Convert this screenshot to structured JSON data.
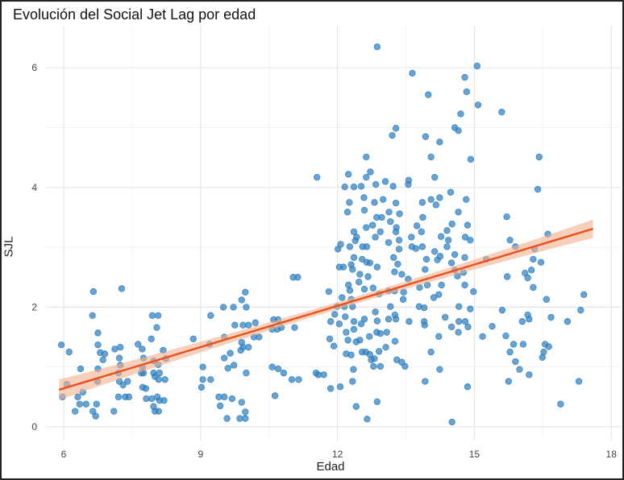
{
  "chart_data": {
    "type": "scatter",
    "title": "Evolución del Social Jet Lag por edad",
    "xlabel": "Edad",
    "ylabel": "SJL",
    "xlim": [
      5.6,
      18.1
    ],
    "ylim": [
      -0.2,
      6.6
    ],
    "xticks": [
      6,
      9,
      12,
      15,
      18
    ],
    "yticks": [
      0,
      2,
      4,
      6
    ],
    "grid": true,
    "colors": {
      "points": "#2e7fbf",
      "fit_line": "#e8511c",
      "confidence_band": "#f2b08f"
    },
    "fit": {
      "type": "linear",
      "x": [
        5.9,
        17.6
      ],
      "y": [
        0.62,
        3.31
      ],
      "ci_halfwidth": [
        0.17,
        0.06,
        0.2
      ]
    },
    "points": [
      [
        5.95,
        1.37
      ],
      [
        6.12,
        1.25
      ],
      [
        5.97,
        0.5
      ],
      [
        6.07,
        0.71
      ],
      [
        6.37,
        0.97
      ],
      [
        6.25,
        0.26
      ],
      [
        6.35,
        0.38
      ],
      [
        6.49,
        0.38
      ],
      [
        6.31,
        0.5
      ],
      [
        6.42,
        0.58
      ],
      [
        6.65,
        2.26
      ],
      [
        6.63,
        1.86
      ],
      [
        6.75,
        1.57
      ],
      [
        6.75,
        1.37
      ],
      [
        6.8,
        1.24
      ],
      [
        6.86,
        1.12
      ],
      [
        6.9,
        1.22
      ],
      [
        6.75,
        0.97
      ],
      [
        6.74,
        0.76
      ],
      [
        6.64,
        0.26
      ],
      [
        6.7,
        0.18
      ],
      [
        6.72,
        0.38
      ],
      [
        7.27,
        2.31
      ],
      [
        7.24,
        1.33
      ],
      [
        7.22,
        1.15
      ],
      [
        7.24,
        1.03
      ],
      [
        7.2,
        0.9
      ],
      [
        7.22,
        0.76
      ],
      [
        7.3,
        0.7
      ],
      [
        7.4,
        0.76
      ],
      [
        7.2,
        0.5
      ],
      [
        7.35,
        0.5
      ],
      [
        7.43,
        0.5
      ],
      [
        7.1,
        0.26
      ],
      [
        7.12,
        1.3
      ],
      [
        7.63,
        1.38
      ],
      [
        7.72,
        1.3
      ],
      [
        7.75,
        1.15
      ],
      [
        7.73,
        0.99
      ],
      [
        7.75,
        0.9
      ],
      [
        7.7,
        0.9
      ],
      [
        7.73,
        0.66
      ],
      [
        7.8,
        0.64
      ],
      [
        7.81,
        0.47
      ],
      [
        7.93,
        0.47
      ],
      [
        7.92,
        1.47
      ],
      [
        7.94,
        1.86
      ],
      [
        8.07,
        1.86
      ],
      [
        8.04,
        1.66
      ],
      [
        7.97,
        0.9
      ],
      [
        8.0,
        0.84
      ],
      [
        8.1,
        0.9
      ],
      [
        8.08,
        0.79
      ],
      [
        8.22,
        0.79
      ],
      [
        8.05,
        0.5
      ],
      [
        8.1,
        0.44
      ],
      [
        8.2,
        0.44
      ],
      [
        7.97,
        0.34
      ],
      [
        8.08,
        0.26
      ],
      [
        8.0,
        0.26
      ],
      [
        8.18,
        1.28
      ],
      [
        8.24,
        1.14
      ],
      [
        8.07,
        1.04
      ],
      [
        7.97,
        1.1
      ],
      [
        8.84,
        1.47
      ],
      [
        9.22,
        1.86
      ],
      [
        9.02,
        0.66
      ],
      [
        9.05,
        1.0
      ],
      [
        9.05,
        0.79
      ],
      [
        9.22,
        0.79
      ],
      [
        9.2,
        1.38
      ],
      [
        9.5,
        2.0
      ],
      [
        9.72,
        2.0
      ],
      [
        9.9,
        2.12
      ],
      [
        9.98,
        2.25
      ],
      [
        10.0,
        2.0
      ],
      [
        9.75,
        1.7
      ],
      [
        9.93,
        1.7
      ],
      [
        10.05,
        1.7
      ],
      [
        10.2,
        1.74
      ],
      [
        10.17,
        1.5
      ],
      [
        10.28,
        1.5
      ],
      [
        9.52,
        1.5
      ],
      [
        9.9,
        1.41
      ],
      [
        9.93,
        1.33
      ],
      [
        10.05,
        1.33
      ],
      [
        9.88,
        1.28
      ],
      [
        9.65,
        1.23
      ],
      [
        9.52,
        1.15
      ],
      [
        9.73,
        1.03
      ],
      [
        9.6,
        0.98
      ],
      [
        10.0,
        0.9
      ],
      [
        9.4,
        0.5
      ],
      [
        9.52,
        0.5
      ],
      [
        9.69,
        0.47
      ],
      [
        9.43,
        0.35
      ],
      [
        9.9,
        0.41
      ],
      [
        9.98,
        0.25
      ],
      [
        9.58,
        0.14
      ],
      [
        9.86,
        0.14
      ],
      [
        9.98,
        0.14
      ],
      [
        10.6,
        1.79
      ],
      [
        10.7,
        1.79
      ],
      [
        10.57,
        1.63
      ],
      [
        10.68,
        1.63
      ],
      [
        10.77,
        1.66
      ],
      [
        11.06,
        1.66
      ],
      [
        11.03,
        2.5
      ],
      [
        11.13,
        2.5
      ],
      [
        10.57,
        1.0
      ],
      [
        10.7,
        0.97
      ],
      [
        10.82,
        0.9
      ],
      [
        11.0,
        0.79
      ],
      [
        11.15,
        0.79
      ],
      [
        10.63,
        0.52
      ],
      [
        11.53,
        0.9
      ],
      [
        12.87,
        6.35
      ],
      [
        13.64,
        5.91
      ],
      [
        15.06,
        6.03
      ],
      [
        14.79,
        5.84
      ],
      [
        14.83,
        5.6
      ],
      [
        13.99,
        5.55
      ],
      [
        15.08,
        5.38
      ],
      [
        15.6,
        5.26
      ],
      [
        14.7,
        5.23
      ],
      [
        13.28,
        4.99
      ],
      [
        13.2,
        4.87
      ],
      [
        14.57,
        5.0
      ],
      [
        14.65,
        4.95
      ],
      [
        13.93,
        4.85
      ],
      [
        14.24,
        4.76
      ],
      [
        12.63,
        4.51
      ],
      [
        14.05,
        4.51
      ],
      [
        14.92,
        4.47
      ],
      [
        16.42,
        4.51
      ],
      [
        11.55,
        4.17
      ],
      [
        12.24,
        4.22
      ],
      [
        12.72,
        4.26
      ],
      [
        12.63,
        4.17
      ],
      [
        14.13,
        4.17
      ],
      [
        13.56,
        4.12
      ],
      [
        13.55,
        4.05
      ],
      [
        16.39,
        3.97
      ],
      [
        12.16,
        4.01
      ],
      [
        12.36,
        4.01
      ],
      [
        12.52,
        4.02
      ],
      [
        12.84,
        4.05
      ],
      [
        13.05,
        4.1
      ],
      [
        13.22,
        4.02
      ],
      [
        14.48,
        3.92
      ],
      [
        12.26,
        3.75
      ],
      [
        12.58,
        3.83
      ],
      [
        12.81,
        3.75
      ],
      [
        13.0,
        3.8
      ],
      [
        13.28,
        3.74
      ],
      [
        13.86,
        3.75
      ],
      [
        14.05,
        3.8
      ],
      [
        14.24,
        3.83
      ],
      [
        14.16,
        3.71
      ],
      [
        14.82,
        3.8
      ],
      [
        12.22,
        3.59
      ],
      [
        12.59,
        3.62
      ],
      [
        12.86,
        3.5
      ],
      [
        12.97,
        3.5
      ],
      [
        13.13,
        3.59
      ],
      [
        13.36,
        3.56
      ],
      [
        14.65,
        3.59
      ],
      [
        13.87,
        3.5
      ],
      [
        15.71,
        3.51
      ],
      [
        12.63,
        3.33
      ],
      [
        12.77,
        3.37
      ],
      [
        13.16,
        3.43
      ],
      [
        13.29,
        3.33
      ],
      [
        13.74,
        3.36
      ],
      [
        14.51,
        3.39
      ],
      [
        14.85,
        3.37
      ],
      [
        12.36,
        3.26
      ],
      [
        12.42,
        3.17
      ],
      [
        12.83,
        3.17
      ],
      [
        12.94,
        3.26
      ],
      [
        13.28,
        3.26
      ],
      [
        13.84,
        3.26
      ],
      [
        14.4,
        3.28
      ],
      [
        12.39,
        3.11
      ],
      [
        13.12,
        3.08
      ],
      [
        13.35,
        3.12
      ],
      [
        13.62,
        3.17
      ],
      [
        14.27,
        3.18
      ],
      [
        14.43,
        3.12
      ],
      [
        14.8,
        3.17
      ],
      [
        14.91,
        3.12
      ],
      [
        15.78,
        3.12
      ],
      [
        16.61,
        3.22
      ],
      [
        12.07,
        3.05
      ],
      [
        12.01,
        2.97
      ],
      [
        12.27,
        3.01
      ],
      [
        12.55,
        3.01
      ],
      [
        12.64,
        3.01
      ],
      [
        13.35,
        2.97
      ],
      [
        13.63,
        3.01
      ],
      [
        13.72,
        2.98
      ],
      [
        13.86,
        3.01
      ],
      [
        14.4,
        3.01
      ],
      [
        15.9,
        3.01
      ],
      [
        12.36,
        2.83
      ],
      [
        12.54,
        2.8
      ],
      [
        12.64,
        2.75
      ],
      [
        12.71,
        2.74
      ],
      [
        13.23,
        2.83
      ],
      [
        13.95,
        2.8
      ],
      [
        14.13,
        2.93
      ],
      [
        14.19,
        2.79
      ],
      [
        14.25,
        2.85
      ],
      [
        14.57,
        2.88
      ],
      [
        14.79,
        2.83
      ],
      [
        15.26,
        2.8
      ],
      [
        16.32,
        2.97
      ],
      [
        16.29,
        2.8
      ],
      [
        16.46,
        2.75
      ],
      [
        12.04,
        2.67
      ],
      [
        12.13,
        2.67
      ],
      [
        12.3,
        2.71
      ],
      [
        12.33,
        2.63
      ],
      [
        12.87,
        2.67
      ],
      [
        13.32,
        2.72
      ],
      [
        13.92,
        2.63
      ],
      [
        14.5,
        2.74
      ],
      [
        14.57,
        2.62
      ],
      [
        14.76,
        2.58
      ],
      [
        16.25,
        2.62
      ],
      [
        12.49,
        2.55
      ],
      [
        12.67,
        2.51
      ],
      [
        13.25,
        2.59
      ],
      [
        13.41,
        2.55
      ],
      [
        13.55,
        2.47
      ],
      [
        14.63,
        2.52
      ],
      [
        15.72,
        2.51
      ],
      [
        16.11,
        2.57
      ],
      [
        16.17,
        2.49
      ],
      [
        12.24,
        2.37
      ],
      [
        12.47,
        2.42
      ],
      [
        13.97,
        2.37
      ],
      [
        14.28,
        2.37
      ],
      [
        14.79,
        2.37
      ],
      [
        16.29,
        2.33
      ],
      [
        11.81,
        2.26
      ],
      [
        12.27,
        2.28
      ],
      [
        12.59,
        2.3
      ],
      [
        12.78,
        2.32
      ],
      [
        12.91,
        2.22
      ],
      [
        13.12,
        2.27
      ],
      [
        13.25,
        2.27
      ],
      [
        13.45,
        2.25
      ],
      [
        13.8,
        2.33
      ],
      [
        14.98,
        2.26
      ],
      [
        12.1,
        2.16
      ],
      [
        12.3,
        2.13
      ],
      [
        13.44,
        2.13
      ],
      [
        14.11,
        2.16
      ],
      [
        14.22,
        2.21
      ],
      [
        16.58,
        2.13
      ],
      [
        17.4,
        2.21
      ],
      [
        11.99,
        2.01
      ],
      [
        12.15,
        2.01
      ],
      [
        12.33,
        2.01
      ],
      [
        13.16,
        2.01
      ],
      [
        13.79,
        2.01
      ],
      [
        13.9,
        1.99
      ],
      [
        14.66,
        2.01
      ],
      [
        14.91,
        1.97
      ],
      [
        15.61,
        1.95
      ],
      [
        17.33,
        1.95
      ],
      [
        11.94,
        1.88
      ],
      [
        11.85,
        1.76
      ],
      [
        12.04,
        1.72
      ],
      [
        12.17,
        1.84
      ],
      [
        12.36,
        1.76
      ],
      [
        12.52,
        1.72
      ],
      [
        12.59,
        1.8
      ],
      [
        12.83,
        1.92
      ],
      [
        12.87,
        1.77
      ],
      [
        13.12,
        1.8
      ],
      [
        13.26,
        1.87
      ],
      [
        13.28,
        1.8
      ],
      [
        13.57,
        1.76
      ],
      [
        13.9,
        1.76
      ],
      [
        13.91,
        1.7
      ],
      [
        14.36,
        1.83
      ],
      [
        14.5,
        1.67
      ],
      [
        14.66,
        1.76
      ],
      [
        14.8,
        1.76
      ],
      [
        14.86,
        1.67
      ],
      [
        15.39,
        1.68
      ],
      [
        16.05,
        1.76
      ],
      [
        16.17,
        1.87
      ],
      [
        16.2,
        1.8
      ],
      [
        16.68,
        1.83
      ],
      [
        17.04,
        1.76
      ],
      [
        11.83,
        1.47
      ],
      [
        11.92,
        1.35
      ],
      [
        12.19,
        1.58
      ],
      [
        12.23,
        1.45
      ],
      [
        12.36,
        1.63
      ],
      [
        12.41,
        1.42
      ],
      [
        12.49,
        1.45
      ],
      [
        12.7,
        1.51
      ],
      [
        12.86,
        1.58
      ],
      [
        12.94,
        1.56
      ],
      [
        13.08,
        1.58
      ],
      [
        13.26,
        1.43
      ],
      [
        14.22,
        1.51
      ],
      [
        14.65,
        1.58
      ],
      [
        15.18,
        1.51
      ],
      [
        15.69,
        1.52
      ],
      [
        15.86,
        1.38
      ],
      [
        16.07,
        1.38
      ],
      [
        15.78,
        1.25
      ],
      [
        16.55,
        1.38
      ],
      [
        16.63,
        1.34
      ],
      [
        16.52,
        1.25
      ],
      [
        16.49,
        1.16
      ],
      [
        12.19,
        1.22
      ],
      [
        12.3,
        1.2
      ],
      [
        12.54,
        1.25
      ],
      [
        12.62,
        1.25
      ],
      [
        12.71,
        1.21
      ],
      [
        12.81,
        1.14
      ],
      [
        12.91,
        1.26
      ],
      [
        13.06,
        1.33
      ],
      [
        12.74,
        1.12
      ],
      [
        13.3,
        1.12
      ],
      [
        13.41,
        1.08
      ],
      [
        13.48,
        1.01
      ],
      [
        12.79,
        1.01
      ],
      [
        12.94,
        1.01
      ],
      [
        12.35,
        0.96
      ],
      [
        14.05,
        1.25
      ],
      [
        14.24,
        0.96
      ],
      [
        15.9,
        1.09
      ],
      [
        15.99,
        0.96
      ],
      [
        16.2,
        0.87
      ],
      [
        11.58,
        0.87
      ],
      [
        11.7,
        0.87
      ],
      [
        12.33,
        0.76
      ],
      [
        11.85,
        0.64
      ],
      [
        12.06,
        0.67
      ],
      [
        13.92,
        0.76
      ],
      [
        14.85,
        0.67
      ],
      [
        15.75,
        0.76
      ],
      [
        17.29,
        0.76
      ],
      [
        12.41,
        0.34
      ],
      [
        12.87,
        0.42
      ],
      [
        12.65,
        0.13
      ],
      [
        14.51,
        0.08
      ],
      [
        16.89,
        0.38
      ]
    ]
  }
}
